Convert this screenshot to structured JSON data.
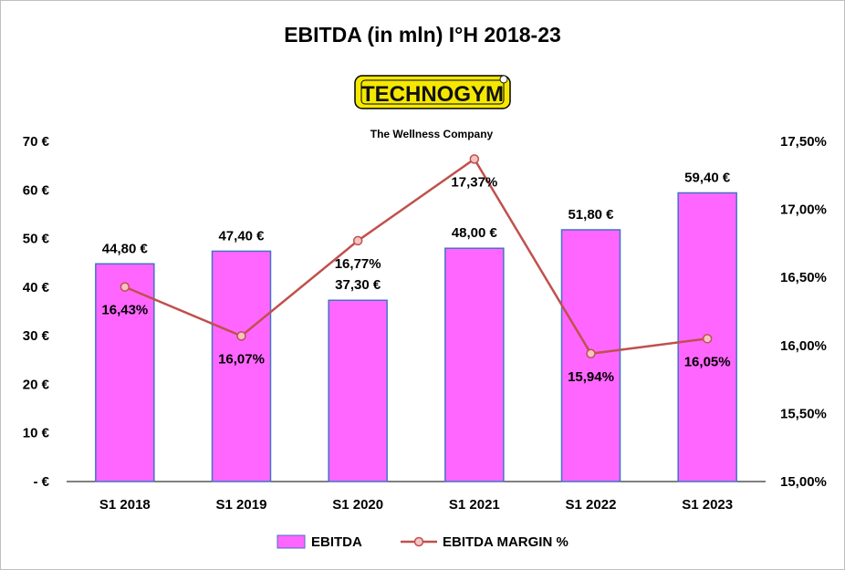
{
  "chart_data": {
    "type": "bar",
    "title": "EBITDA  (in mln) I°H 2018-23",
    "categories": [
      "S1 2018",
      "S1 2019",
      "S1 2020",
      "S1 2021",
      "S1 2022",
      "S1 2023"
    ],
    "series": [
      {
        "name": "EBITDA",
        "kind": "bar",
        "axis": "left",
        "color": "#ff66ff",
        "border_color": "#4472c4",
        "values": [
          44.8,
          47.4,
          37.3,
          48.0,
          51.8,
          59.4
        ],
        "labels": [
          "44,80 €",
          "47,40 €",
          "37,30 €",
          "48,00 €",
          "51,80 €",
          "59,40 €"
        ]
      },
      {
        "name": "EBITDA MARGIN %",
        "kind": "line",
        "axis": "right",
        "color": "#c0504d",
        "marker_fill": "#f2c4c3",
        "values": [
          16.43,
          16.07,
          16.77,
          17.37,
          15.94,
          16.05
        ],
        "labels": [
          "16,43%",
          "16,07%",
          "16,77%",
          "17,37%",
          "15,94%",
          "16,05%"
        ]
      }
    ],
    "y_left": {
      "ylim": [
        0,
        70
      ],
      "ticks": [
        0,
        10,
        20,
        30,
        40,
        50,
        60,
        70
      ],
      "tick_labels": [
        "- €",
        "10 €",
        "20 €",
        "30 €",
        "40 €",
        "50 €",
        "60 €",
        "70 €"
      ]
    },
    "y_right": {
      "ylim": [
        15.0,
        17.5
      ],
      "ticks": [
        15.0,
        15.5,
        16.0,
        16.5,
        17.0,
        17.5
      ],
      "tick_labels": [
        "15,00%",
        "15,50%",
        "16,00%",
        "16,50%",
        "17,00%",
        "17,50%"
      ]
    },
    "grid": false,
    "legend_position": "bottom"
  },
  "logo": {
    "brand": "TECHNOGYM",
    "tagline": "The Wellness Company",
    "colors": {
      "yellow": "#f5e800",
      "dark": "#222222"
    }
  }
}
